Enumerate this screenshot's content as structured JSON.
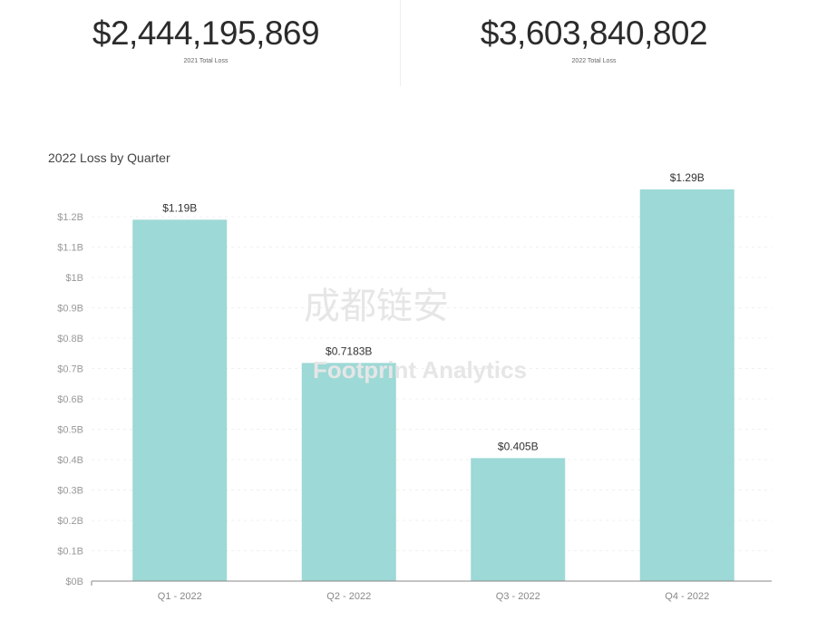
{
  "stats": [
    {
      "value": "$2,444,195,869",
      "label": "2021 Total Loss"
    },
    {
      "value": "$3,603,840,802",
      "label": "2022 Total Loss"
    }
  ],
  "watermarks": [
    "成都链安",
    "Footprint Analytics"
  ],
  "colors": {
    "bar": "#9dd9d6",
    "axis": "#888888",
    "grid": "#f0f0f0"
  },
  "chart_data": {
    "type": "bar",
    "title": "2022 Loss by Quarter",
    "categories": [
      "Q1 - 2022",
      "Q2 - 2022",
      "Q3 - 2022",
      "Q4 - 2022"
    ],
    "values": [
      1.19,
      0.7183,
      0.405,
      1.29
    ],
    "data_labels": [
      "$1.19B",
      "$0.7183B",
      "$0.405B",
      "$1.29B"
    ],
    "yticks": [
      0,
      0.1,
      0.2,
      0.3,
      0.4,
      0.5,
      0.6,
      0.7,
      0.8,
      0.9,
      1,
      1.1,
      1.2
    ],
    "ytick_labels": [
      "$0B",
      "$0.1B",
      "$0.2B",
      "$0.3B",
      "$0.4B",
      "$0.5B",
      "$0.6B",
      "$0.7B",
      "$0.8B",
      "$0.9B",
      "$1B",
      "$1.1B",
      "$1.2B"
    ],
    "ylabel": "",
    "xlabel": "",
    "grid": true,
    "legend": "none"
  }
}
